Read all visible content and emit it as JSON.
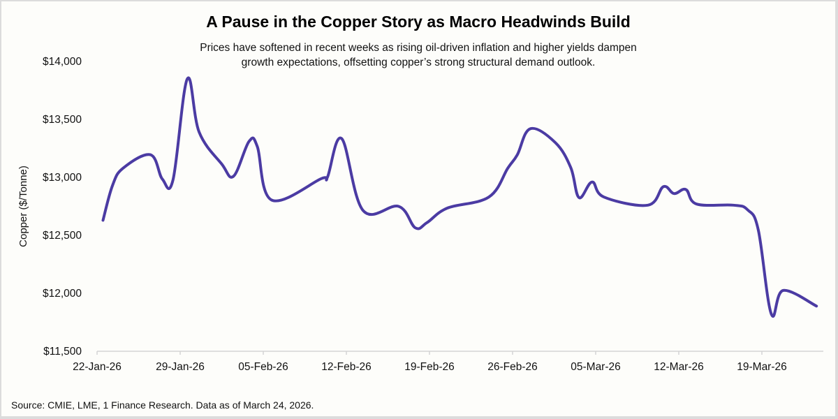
{
  "chart_data": {
    "type": "line",
    "title": "A Pause in the Copper Story as Macro Headwinds Build",
    "subtitle": "Prices have softened in recent weeks as rising oil-driven inflation and higher yields dampen growth expectations, offsetting copper’s strong structural demand outlook.",
    "subtitle_lines": [
      "Prices have softened in recent weeks as rising oil-driven inflation and higher yields dampen",
      "growth expectations, offsetting copper’s strong structural demand outlook."
    ],
    "xlabel": "",
    "ylabel": "Copper ($/Tonne)",
    "ylim": [
      11500,
      14000
    ],
    "yticks": [
      11500,
      12000,
      12500,
      13000,
      13500,
      14000
    ],
    "ytick_labels": [
      "$11,500",
      "$12,000",
      "$12,500",
      "$13,000",
      "$13,500",
      "$14,000"
    ],
    "xlim_days_from_start": [
      0,
      61
    ],
    "xticks_days": [
      0,
      7,
      14,
      21,
      28,
      35,
      42,
      49,
      56
    ],
    "xtick_labels": [
      "22-Jan-26",
      "29-Jan-26",
      "05-Feb-26",
      "12-Feb-26",
      "19-Feb-26",
      "26-Feb-26",
      "05-Mar-26",
      "12-Mar-26",
      "19-Mar-26"
    ],
    "grid": false,
    "legend": "none",
    "line_color": "#4b3ba3",
    "series": [
      {
        "name": "Copper ($/Tonne)",
        "points": [
          {
            "day": 0.5,
            "value": 12630
          },
          {
            "day": 1.3,
            "value": 12930
          },
          {
            "day": 2.2,
            "value": 13080
          },
          {
            "day": 4.5,
            "value": 13195
          },
          {
            "day": 5.5,
            "value": 12985
          },
          {
            "day": 6.4,
            "value": 12980
          },
          {
            "day": 7.6,
            "value": 13850
          },
          {
            "day": 8.6,
            "value": 13390
          },
          {
            "day": 10.5,
            "value": 13115
          },
          {
            "day": 11.5,
            "value": 13010
          },
          {
            "day": 12.8,
            "value": 13310
          },
          {
            "day": 13.5,
            "value": 13265
          },
          {
            "day": 14.7,
            "value": 12805
          },
          {
            "day": 18.9,
            "value": 12990
          },
          {
            "day": 19.4,
            "value": 13000
          },
          {
            "day": 20.6,
            "value": 13335
          },
          {
            "day": 22.4,
            "value": 12715
          },
          {
            "day": 25.4,
            "value": 12750
          },
          {
            "day": 26.8,
            "value": 12565
          },
          {
            "day": 27.8,
            "value": 12610
          },
          {
            "day": 29.5,
            "value": 12735
          },
          {
            "day": 33.0,
            "value": 12830
          },
          {
            "day": 34.6,
            "value": 13080
          },
          {
            "day": 35.4,
            "value": 13195
          },
          {
            "day": 36.5,
            "value": 13420
          },
          {
            "day": 38.6,
            "value": 13300
          },
          {
            "day": 39.9,
            "value": 13085
          },
          {
            "day": 40.6,
            "value": 12825
          },
          {
            "day": 41.7,
            "value": 12960
          },
          {
            "day": 42.7,
            "value": 12830
          },
          {
            "day": 46.4,
            "value": 12760
          },
          {
            "day": 47.7,
            "value": 12920
          },
          {
            "day": 48.6,
            "value": 12860
          },
          {
            "day": 49.6,
            "value": 12895
          },
          {
            "day": 50.5,
            "value": 12770
          },
          {
            "day": 53.6,
            "value": 12760
          },
          {
            "day": 54.8,
            "value": 12720
          },
          {
            "day": 55.7,
            "value": 12545
          },
          {
            "day": 56.8,
            "value": 11820
          },
          {
            "day": 57.8,
            "value": 12025
          },
          {
            "day": 60.6,
            "value": 11890
          }
        ]
      }
    ],
    "source": "Source: CMIE, LME, 1 Finance Research. Data as of March 24, 2026."
  }
}
